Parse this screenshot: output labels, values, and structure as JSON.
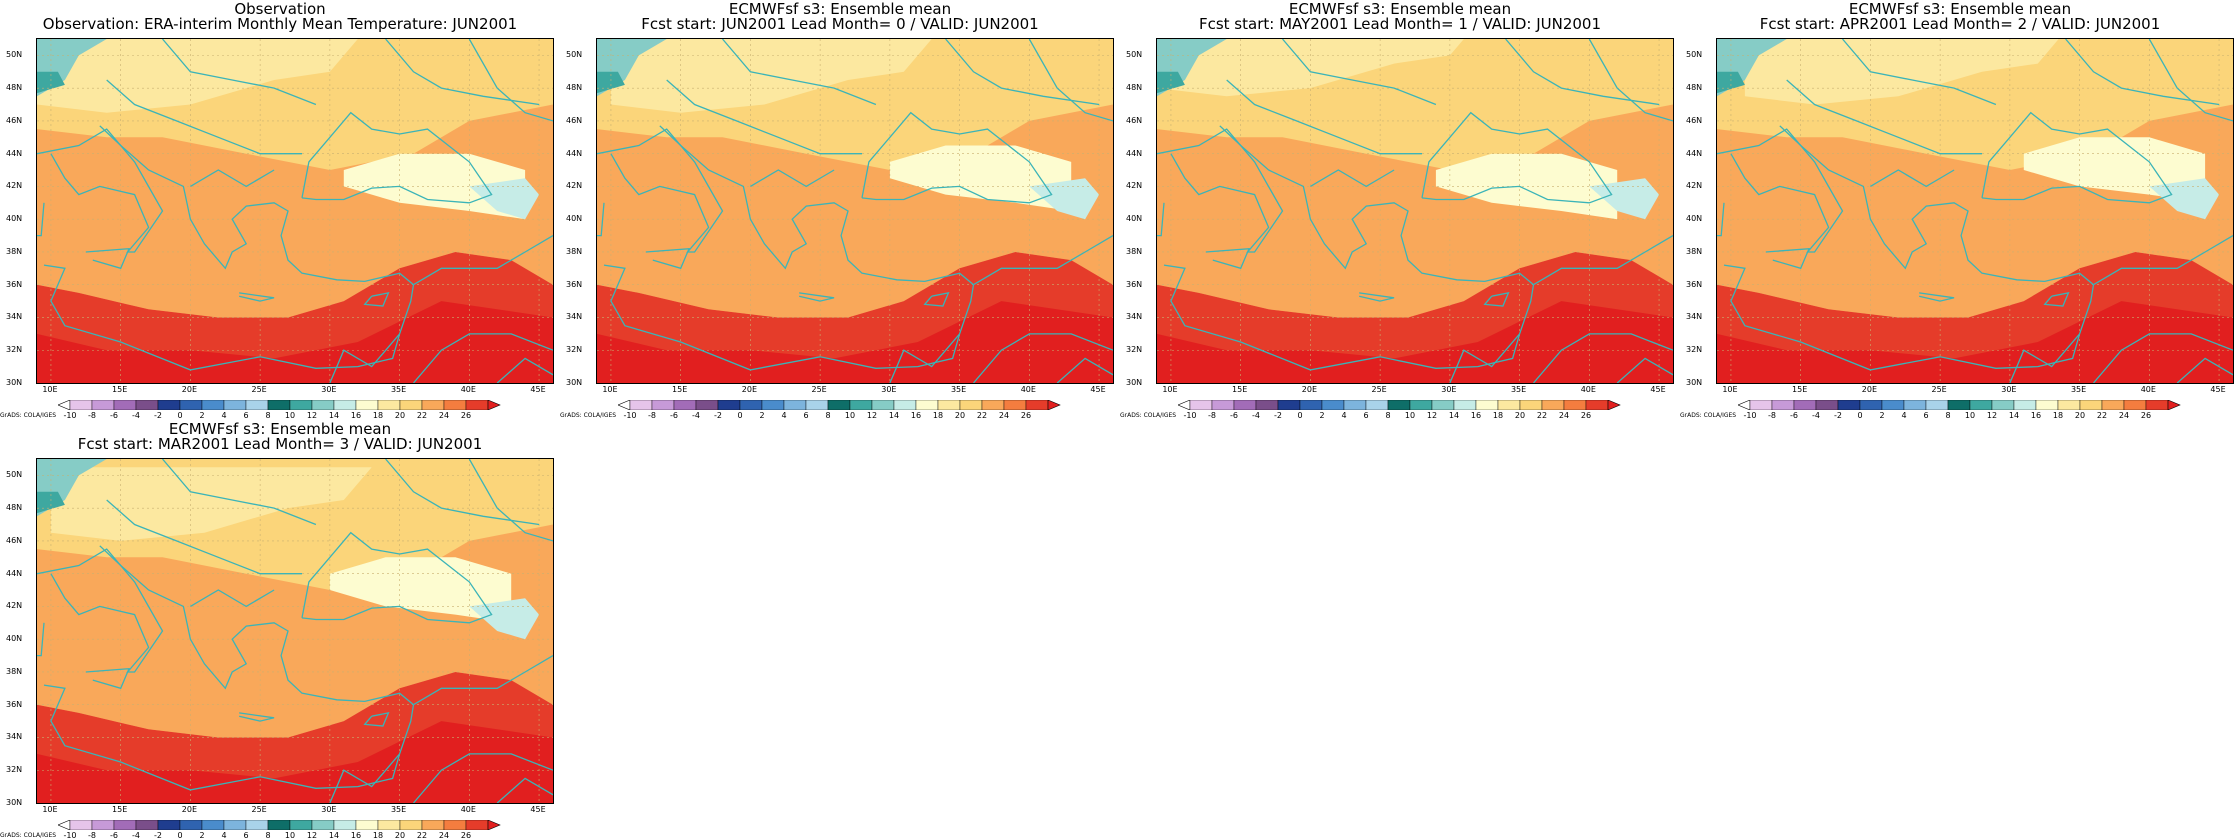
{
  "panels": [
    {
      "title": "Observation",
      "subtitle": "Observation: ERA-interim Monthly Mean Temperature: JUN2001",
      "variant": 0
    },
    {
      "title": "ECMWFsf s3: Ensemble mean",
      "subtitle": "Fcst start: JUN2001   Lead Month= 0 / VALID: JUN2001",
      "variant": 1
    },
    {
      "title": "ECMWFsf s3: Ensemble mean",
      "subtitle": "Fcst start: MAY2001   Lead Month= 1 / VALID: JUN2001",
      "variant": 2
    },
    {
      "title": "ECMWFsf s3: Ensemble mean",
      "subtitle": "Fcst start: APR2001   Lead Month= 2 / VALID: JUN2001",
      "variant": 3
    },
    {
      "title": "ECMWFsf s3: Ensemble mean",
      "subtitle": "Fcst start: MAR2001   Lead Month= 3 / VALID: JUN2001",
      "variant": 4
    }
  ],
  "axes": {
    "lat_labels": [
      "50N",
      "48N",
      "46N",
      "44N",
      "42N",
      "40N",
      "38N",
      "36N",
      "34N",
      "32N",
      "30N"
    ],
    "lon_labels": [
      "10E",
      "15E",
      "20E",
      "25E",
      "30E",
      "35E",
      "40E",
      "45E"
    ],
    "lat_range": [
      30,
      51
    ],
    "lon_range": [
      9,
      46
    ]
  },
  "colorbar": {
    "labels": [
      "-10",
      "-8",
      "-6",
      "-4",
      "-2",
      "0",
      "2",
      "4",
      "6",
      "8",
      "10",
      "12",
      "14",
      "16",
      "18",
      "20",
      "22",
      "24",
      "26"
    ],
    "colors": [
      "#ffffff",
      "#e6c4ea",
      "#c79ad8",
      "#a26cb8",
      "#7a4e8a",
      "#1f3d8f",
      "#2f63b0",
      "#4a8ccc",
      "#7db4dd",
      "#a9d3ea",
      "#0e6e68",
      "#3ea8a0",
      "#86ccc6",
      "#c6ece7",
      "#fdfcd0",
      "#fce8a0",
      "#fbd57a",
      "#f9a85a",
      "#f47d3f",
      "#e53c2a",
      "#e11f1f"
    ]
  },
  "credit": "GrADS: COLA/IGES",
  "colors": {
    "coast": "#3bb4b8",
    "grid": "#c8b070"
  }
}
